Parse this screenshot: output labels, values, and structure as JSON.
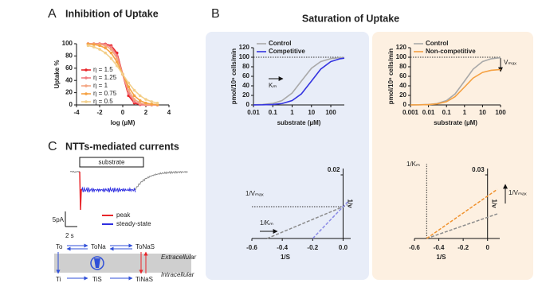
{
  "figure": {
    "panel_labels": [
      "A",
      "B",
      "C"
    ],
    "panel_b_title": "Saturation of Uptake"
  },
  "chart_data": [
    {
      "type": "line",
      "title": "Inhibition of Uptake",
      "x_label": "log (µM)",
      "y_label": "Uptake %",
      "xlim": [
        -4,
        4
      ],
      "xticks": [
        -4,
        -2,
        0,
        2,
        4
      ],
      "ylim": [
        0,
        100
      ],
      "yticks": [
        0,
        20,
        40,
        60,
        80,
        100
      ],
      "markers": true,
      "x": [
        -3,
        -2.5,
        -2,
        -1.5,
        -1,
        -0.5,
        0,
        0.5,
        1,
        1.5,
        2,
        2.5,
        3
      ],
      "series": [
        {
          "name": "η = 1.5",
          "color": "#e8262b",
          "values": [
            100,
            100,
            99.9,
            99.4,
            96.9,
            84.9,
            50,
            15.1,
            3.1,
            0.6,
            0.1,
            0,
            0
          ]
        },
        {
          "name": "η = 1.25",
          "color": "#f07c80",
          "values": [
            100,
            99.9,
            99.7,
            98.7,
            94.7,
            80.8,
            50,
            19.2,
            5.3,
            1.3,
            0.3,
            0.1,
            0
          ]
        },
        {
          "name": "η = 1",
          "color": "#f4a582",
          "values": [
            99.9,
            99.7,
            99.0,
            96.9,
            90.9,
            76.0,
            50,
            24.0,
            9.1,
            3.1,
            1.0,
            0.3,
            0.1
          ]
        },
        {
          "name": "η = 0.75",
          "color": "#f5a142",
          "values": [
            99.4,
            98.7,
            96.9,
            93.0,
            84.9,
            70.3,
            50,
            29.7,
            15.1,
            7.0,
            3.1,
            1.3,
            0.6
          ]
        },
        {
          "name": "η = 0.5",
          "color": "#f3cf8a",
          "values": [
            96.9,
            94.7,
            90.9,
            84.9,
            76.0,
            64.0,
            50,
            36.0,
            24.0,
            15.1,
            9.1,
            5.3,
            3.1
          ]
        }
      ]
    },
    {
      "type": "line",
      "log_x": true,
      "x_label": "substrate (µM)",
      "y_label": "pmol/10⁶ cells/min",
      "xlim": [
        0.01,
        500
      ],
      "xticks": [
        0.01,
        0.1,
        1,
        10,
        100
      ],
      "ylim": [
        0,
        120
      ],
      "yticks": [
        0,
        20,
        40,
        60,
        80,
        100,
        120
      ],
      "hline": 100,
      "annotation": "Kₘ",
      "x": [
        0.01,
        0.03,
        0.1,
        0.3,
        1,
        3,
        10,
        30,
        100,
        300,
        500
      ],
      "series": [
        {
          "name": "Control",
          "color": "#a9a9a9",
          "values": [
            0.3,
            1.0,
            3.2,
            9.1,
            25,
            50,
            76.9,
            90.9,
            97.1,
            99.0,
            99.4
          ]
        },
        {
          "name": "Competitive",
          "color": "#3434e0",
          "values": [
            0.1,
            0.3,
            1.0,
            2.9,
            9.1,
            23.1,
            50,
            75,
            90.9,
            96.8,
            98.0
          ]
        }
      ]
    },
    {
      "type": "line",
      "log_x": true,
      "x_label": "substrate (µM)",
      "y_label": "pmol/10⁶ cells/min",
      "xlim": [
        0.001,
        100
      ],
      "xticks": [
        0.001,
        0.01,
        0.1,
        1,
        10,
        100
      ],
      "ylim": [
        0,
        120
      ],
      "yticks": [
        0,
        20,
        40,
        60,
        80,
        100,
        120
      ],
      "hline": 100,
      "annotation": "Vₘₐₓ",
      "x": [
        0.001,
        0.003,
        0.01,
        0.03,
        0.1,
        0.3,
        1,
        3,
        10,
        30,
        100
      ],
      "series": [
        {
          "name": "Control",
          "color": "#a9a9a9",
          "values": [
            0.1,
            0.3,
            1.0,
            2.9,
            9.1,
            23.1,
            50,
            75,
            90.9,
            96.8,
            99.0
          ]
        },
        {
          "name": "Non-competitive",
          "color": "#f5a142",
          "values": [
            0.1,
            0.2,
            0.7,
            2.2,
            6.8,
            17.3,
            37.5,
            56.3,
            68.2,
            72.6,
            74.3
          ]
        }
      ]
    },
    {
      "type": "line",
      "origin_axes": true,
      "dashed": true,
      "x_label": "1/S",
      "y_label": "1/v",
      "xlim": [
        -0.6,
        0.05
      ],
      "xticks": [
        -0.6,
        -0.4,
        -0.2,
        {
          "value": 0,
          "label": "0.0"
        }
      ],
      "ylim": [
        0,
        0.022
      ],
      "yticks": [
        0.02
      ],
      "hline": 0.01,
      "annotations": [
        "1/Vₘₐₓ",
        "1/Kₘ"
      ],
      "series": [
        {
          "color": "#8c8c8c",
          "x": [
            -0.5,
            0.03
          ],
          "values": [
            0,
            0.0106
          ]
        },
        {
          "color": "#8a8ae6",
          "x": [
            -0.2,
            0.03
          ],
          "values": [
            0,
            0.0115
          ]
        }
      ]
    },
    {
      "type": "line",
      "origin_axes": true,
      "dashed": true,
      "x_label": "1/S",
      "y_label": "1/v",
      "xlim": [
        -0.6,
        0.1
      ],
      "xticks": [
        -0.6,
        -0.4,
        -0.2,
        0
      ],
      "ylim": [
        0,
        0.033
      ],
      "yticks": [
        0.03
      ],
      "vline": -0.5,
      "annotations": [
        "1/Kₘ",
        "1/Vₘₐₓ"
      ],
      "series": [
        {
          "color": "#8c8c8c",
          "x": [
            -0.5,
            0.08
          ],
          "values": [
            0,
            0.0116
          ]
        },
        {
          "color": "#f0922e",
          "x": [
            -0.5,
            0.08
          ],
          "values": [
            0,
            0.0232
          ]
        }
      ]
    }
  ],
  "currents": {
    "title": "NTTs-mediated currents",
    "stimulus": "substrate",
    "scale_current": "5pA",
    "scale_time": "2 s",
    "legend": [
      {
        "name": "peak",
        "color": "#e8262b"
      },
      {
        "name": "steady-state",
        "color": "#2f2fe0"
      }
    ]
  },
  "scheme": {
    "outer_states": [
      "To",
      "ToNa",
      "ToNaS"
    ],
    "inner_states": [
      "Ti",
      "TiS",
      "TiNaS"
    ],
    "outside": "Extracellular",
    "inside": "Intracellular"
  }
}
